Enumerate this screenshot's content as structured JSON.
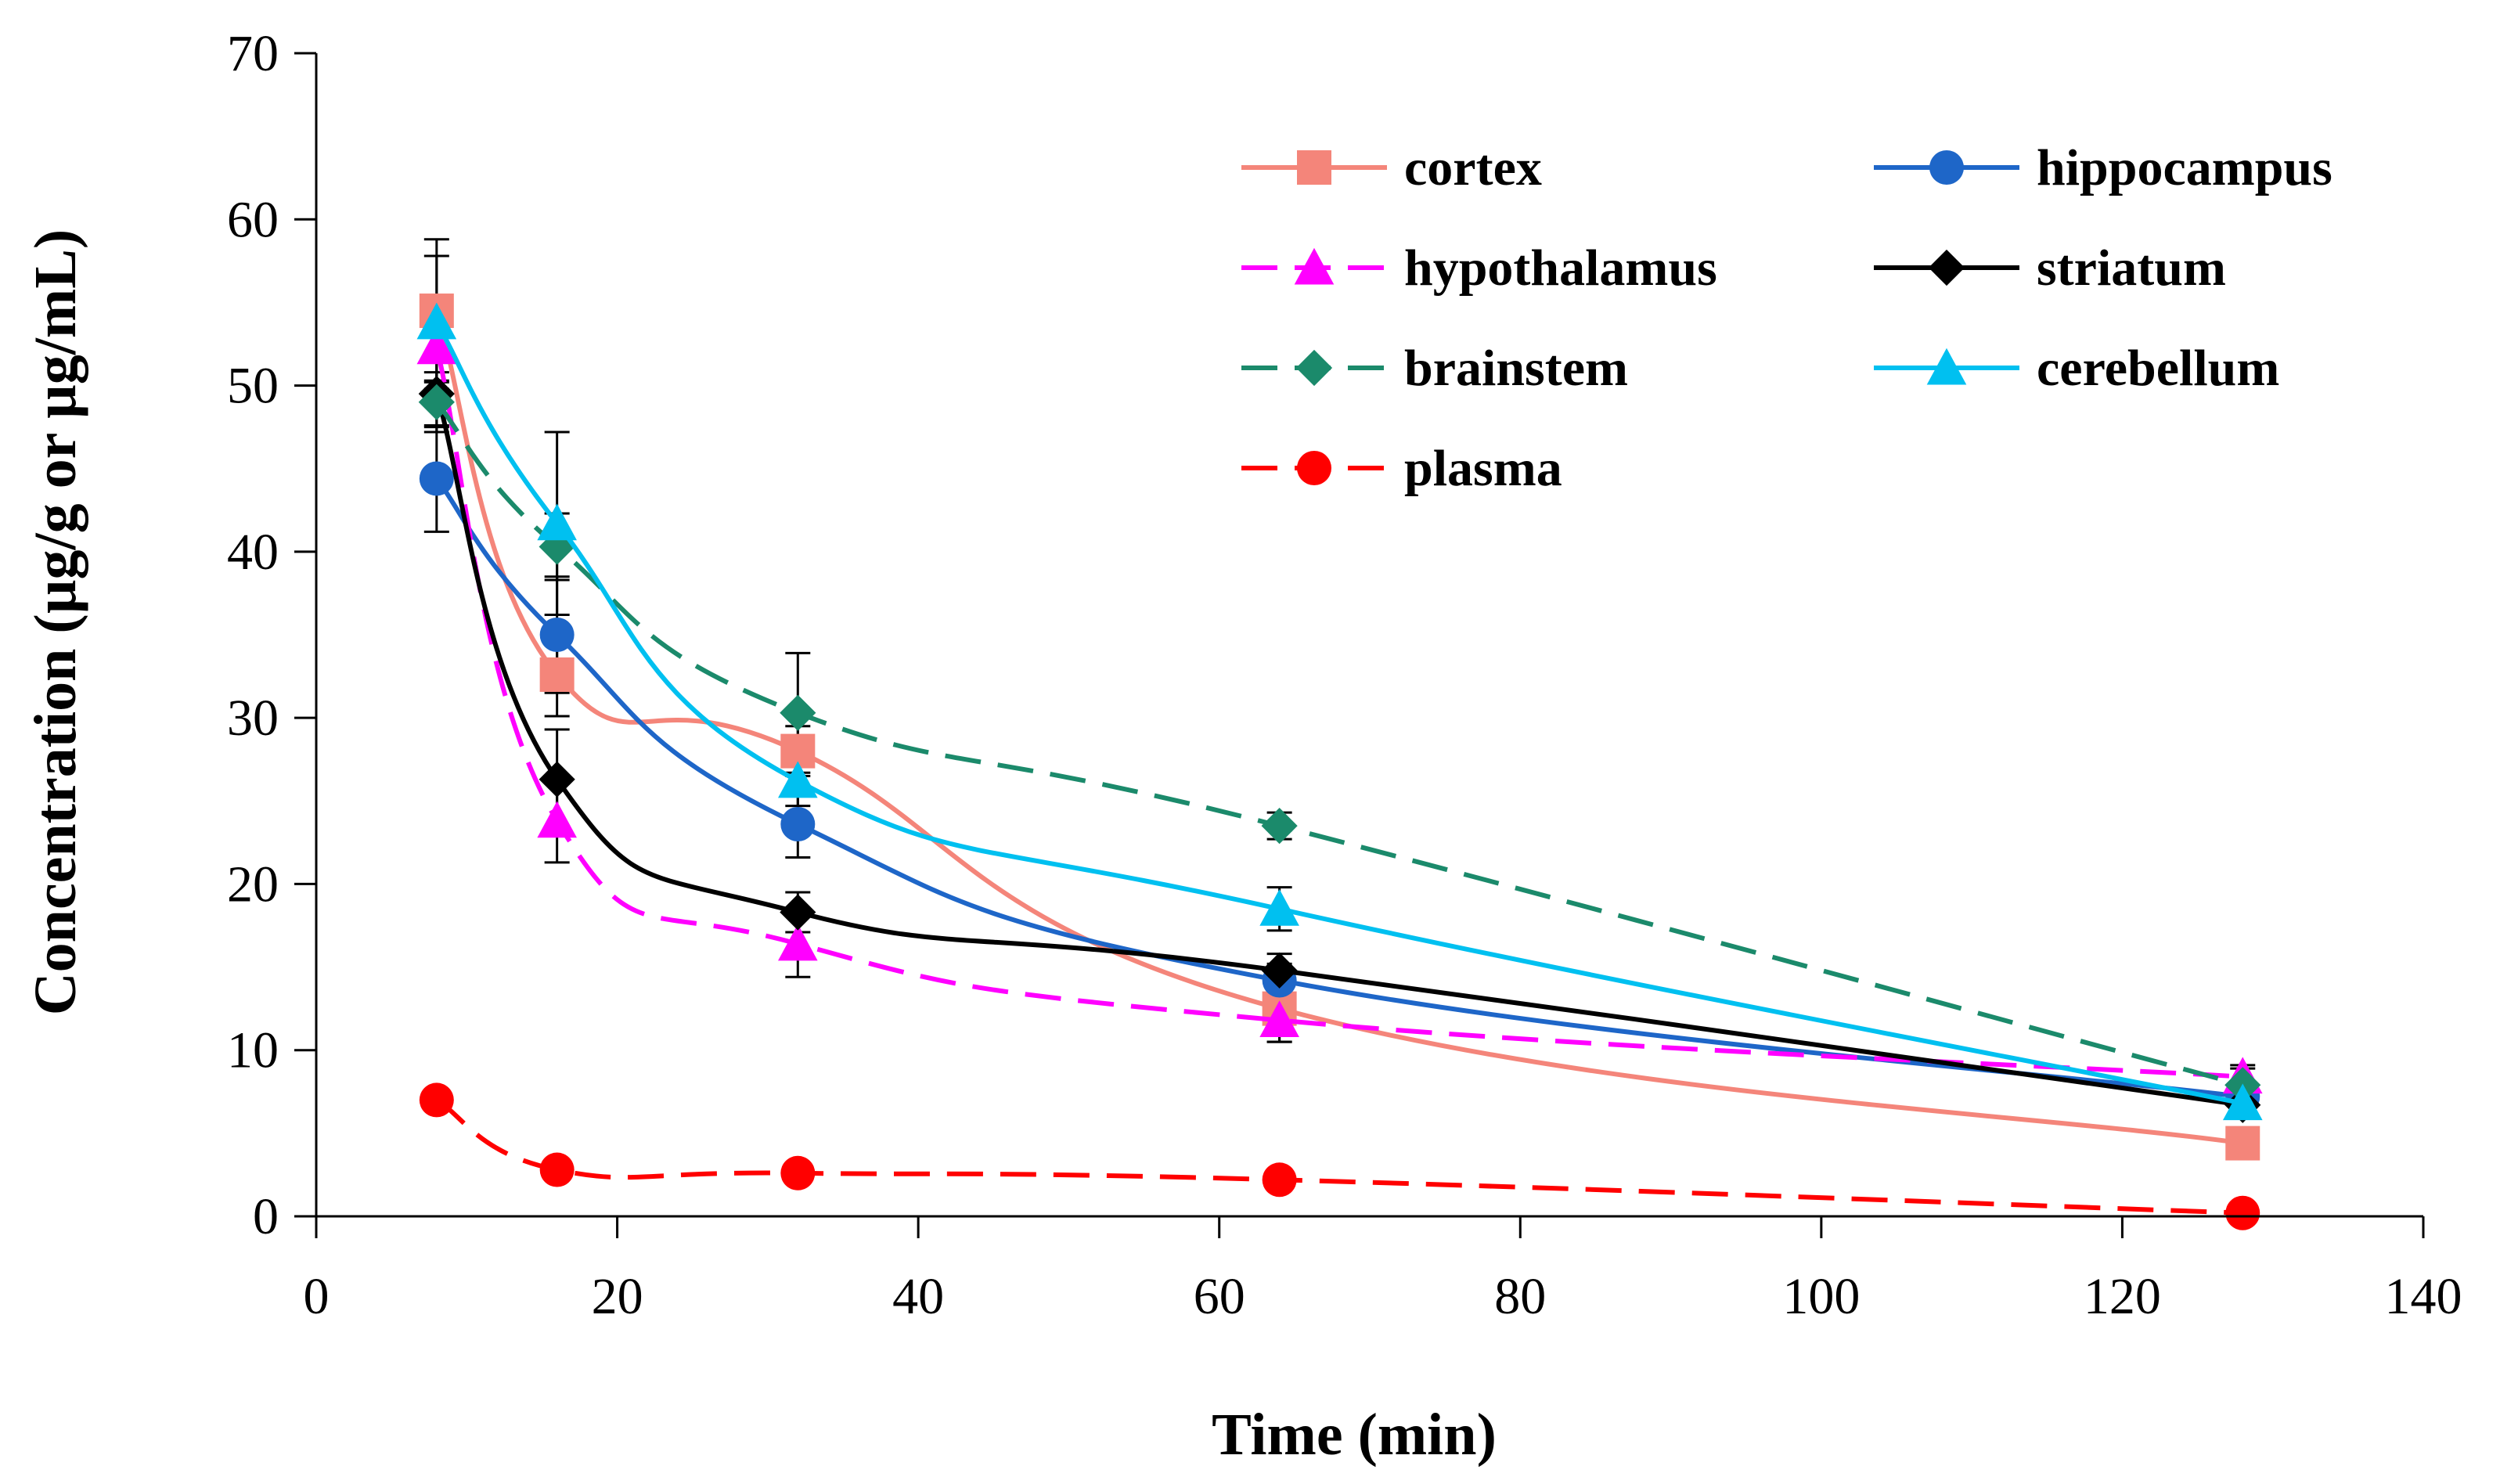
{
  "chart_data": {
    "type": "line",
    "title": "",
    "xlabel": "Time (min)",
    "ylabel": "Concentration (µg/g or µg/mL)",
    "xlim": [
      0,
      140
    ],
    "ylim": [
      0,
      70
    ],
    "xticks": [
      0,
      20,
      40,
      60,
      80,
      100,
      120,
      140
    ],
    "yticks": [
      0,
      10,
      20,
      30,
      40,
      50,
      60,
      70
    ],
    "grid": false,
    "legend_position": "top-right",
    "x": [
      8,
      16,
      32,
      64,
      128
    ],
    "series": [
      {
        "name": "cortex",
        "values": [
          54.5,
          32.6,
          28.0,
          12.5,
          4.4
        ],
        "errors": [
          4.3,
          2.5,
          1.5,
          2.0,
          0.0
        ],
        "color": "#F4857A",
        "dash": false,
        "marker": "square"
      },
      {
        "name": "hippocampus",
        "values": [
          44.4,
          35.0,
          23.6,
          14.2,
          7.2
        ],
        "errors": [
          3.2,
          3.5,
          2.0,
          1.0,
          0.5
        ],
        "color": "#1E66C8",
        "dash": false,
        "marker": "circle"
      },
      {
        "name": "hypothalamus",
        "values": [
          52.3,
          23.8,
          16.4,
          11.8,
          8.4
        ],
        "errors": [
          2.0,
          2.5,
          2.0,
          1.3,
          0.7
        ],
        "color": "#FF00FF",
        "dash": true,
        "marker": "triangle"
      },
      {
        "name": "striatum",
        "values": [
          49.5,
          26.3,
          18.3,
          14.8,
          6.7
        ],
        "errors": [
          2.0,
          3.0,
          1.2,
          1.0,
          0.6
        ],
        "color": "#000000",
        "dash": false,
        "marker": "diamond"
      },
      {
        "name": "brainstem",
        "values": [
          49.0,
          40.3,
          30.3,
          23.5,
          7.9
        ],
        "errors": [
          1.8,
          2.0,
          3.6,
          0.8,
          1.0
        ],
        "color": "#1B8A6B",
        "dash": true,
        "marker": "diamond"
      },
      {
        "name": "cerebellum",
        "values": [
          53.8,
          41.7,
          26.2,
          18.5,
          6.8
        ],
        "errors": [
          4.0,
          5.5,
          1.5,
          1.3,
          0.7
        ],
        "color": "#00C0F0",
        "dash": false,
        "marker": "triangle"
      },
      {
        "name": "plasma",
        "values": [
          7.0,
          2.8,
          2.6,
          2.2,
          0.2
        ],
        "errors": [
          0,
          0,
          0,
          0,
          0
        ],
        "color": "#FF0000",
        "dash": true,
        "marker": "circle"
      }
    ]
  }
}
